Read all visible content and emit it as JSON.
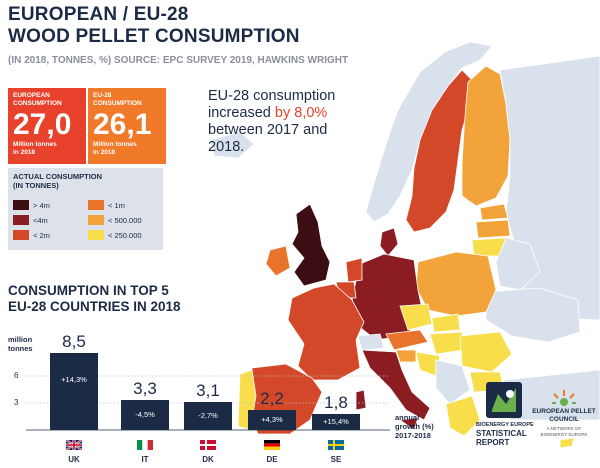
{
  "header": {
    "title_line1": "EUROPEAN / EU-28",
    "title_line2": "WOOD PELLET CONSUMPTION",
    "subtitle": "(IN 2018, TONNES, %) SOURCE: EPC SURVEY 2019, HAWKINS WRIGHT"
  },
  "stats": [
    {
      "label_line1": "EUROPEAN",
      "label_line2": "CONSUMPTION",
      "value": "27,0",
      "unit_line1": "Million tonnes",
      "unit_line2": "in 2018",
      "color": "#e8422c"
    },
    {
      "label_line1": "EU-28",
      "label_line2": "CONSUMPTION",
      "value": "26,1",
      "unit_line1": "Million tonnes",
      "unit_line2": "in 2018",
      "color": "#f07a2a"
    }
  ],
  "legend": {
    "title_line1": "ACTUAL CONSUMPTION",
    "title_line2": "(IN TONNES)",
    "items": [
      {
        "label": "> 4m",
        "color": "#3d0d14"
      },
      {
        "label": "<4m",
        "color": "#8b1d22"
      },
      {
        "label": "< 2m",
        "color": "#d4482a"
      },
      {
        "label": "< 1m",
        "color": "#e8742c"
      },
      {
        "label": "< 500.000",
        "color": "#f2a33a"
      },
      {
        "label": "< 250.000",
        "color": "#f8de4a"
      }
    ]
  },
  "callout": {
    "line1": "EU-28 consumption",
    "line2_pre": "increased ",
    "line2_hl": "by 8,0%",
    "line3": "between 2017 and",
    "line4": "2018."
  },
  "chart": {
    "title_line1": "CONSUMPTION IN TOP 5",
    "title_line2": "EU-28 COUNTRIES IN 2018",
    "ylabel_line1": "million",
    "ylabel_line2": "tonnes",
    "yticks": [
      "6",
      "3"
    ],
    "growth_label_line1": "annual",
    "growth_label_line2": "growth (%)",
    "growth_label_line3": "2017-2018"
  },
  "chart_data": {
    "type": "bar",
    "categories": [
      "UK",
      "IT",
      "DK",
      "DE",
      "SE"
    ],
    "values": [
      8.5,
      3.3,
      3.1,
      2.2,
      1.8
    ],
    "value_labels": [
      "8,5",
      "3,3",
      "3,1",
      "2,2",
      "1,8"
    ],
    "growth_labels": [
      "+14,3%",
      "-4,5%",
      "-2,7%",
      "+4,3%",
      "+15,4%"
    ],
    "ylabel": "million tonnes",
    "yticks": [
      3,
      6
    ],
    "ylim": [
      0,
      9
    ],
    "grid": true
  },
  "map": {
    "colors": {
      "sea": "#ffffff",
      "nonEU": "#d8e1ec",
      "gt4m": "#3d0d14",
      "lt4m": "#8b1d22",
      "lt2m": "#d4482a",
      "lt1m": "#e8742c",
      "lt500k": "#f2a33a",
      "lt250k": "#f8de4a"
    }
  },
  "logos": {
    "bioenergy_line1": "BIOENERGY EUROPE",
    "bioenergy_line2": "STATISTICAL",
    "bioenergy_line3": "REPORT",
    "epc_line1": "EUROPEAN PELLET",
    "epc_line2": "COUNCIL",
    "epc_sub1": "A NETWORK OF",
    "epc_sub2": "BIOENERGY EUROPE"
  }
}
